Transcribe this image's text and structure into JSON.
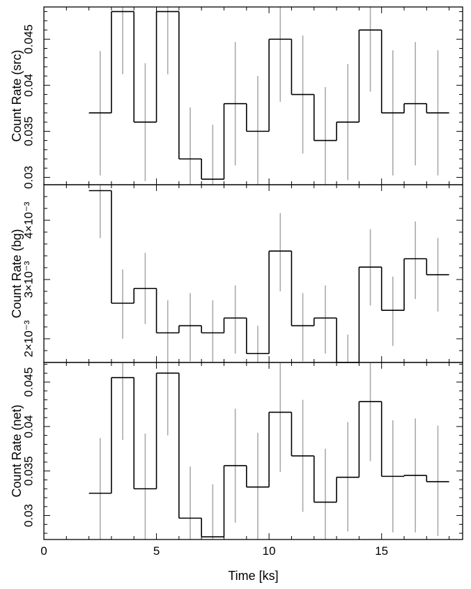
{
  "chart_data": [
    {
      "type": "line",
      "style": "histogram-step with vertical error bars",
      "xlabel": "",
      "ylabel": "Count Rate (src)",
      "xlim": [
        0,
        18.6
      ],
      "ylim": [
        0.0292,
        0.0485
      ],
      "yticks": [
        {
          "value": 0.03,
          "label": "0.03"
        },
        {
          "value": 0.035,
          "label": "0.035"
        },
        {
          "value": 0.04,
          "label": "0.04"
        },
        {
          "value": 0.045,
          "label": "0.045"
        }
      ],
      "minor_y_step": 0.001,
      "series": [
        {
          "x_edges": [
            2.0,
            3.0,
            4.0,
            5.0,
            6.0,
            7.0,
            8.0,
            9.0,
            10.0,
            11.0,
            12.0,
            13.0,
            14.0,
            15.0,
            16.0,
            17.0,
            18.0
          ],
          "x_centers": [
            2.5,
            3.5,
            4.5,
            5.5,
            6.5,
            7.5,
            8.5,
            9.5,
            10.5,
            11.5,
            12.5,
            13.5,
            14.5,
            15.5,
            16.5,
            17.5
          ],
          "values": [
            0.037,
            0.048,
            0.036,
            0.048,
            0.032,
            0.0298,
            0.038,
            0.035,
            0.045,
            0.039,
            0.034,
            0.036,
            0.046,
            0.037,
            0.038,
            0.037
          ],
          "err_low": [
            0.0302,
            0.0412,
            0.0296,
            0.0412,
            0.0254,
            0.0238,
            0.0313,
            0.029,
            0.0382,
            0.0326,
            0.0282,
            0.0297,
            0.0393,
            0.0302,
            0.0313,
            0.0302
          ],
          "err_high": [
            0.0437,
            0.0548,
            0.0424,
            0.0548,
            0.0376,
            0.0357,
            0.0447,
            0.041,
            0.0518,
            0.0454,
            0.0398,
            0.0423,
            0.0527,
            0.0438,
            0.0447,
            0.0438
          ]
        }
      ]
    },
    {
      "type": "line",
      "style": "histogram-step with vertical error bars",
      "xlabel": "",
      "ylabel": "Count Rate (bg)",
      "xlim": [
        0,
        18.6
      ],
      "ylim": [
        0.0016,
        0.0046
      ],
      "yticks": [
        {
          "value": 0.002,
          "label": "2×10⁻³"
        },
        {
          "value": 0.003,
          "label": "3×10⁻³"
        },
        {
          "value": 0.004,
          "label": "4×10⁻³"
        }
      ],
      "minor_y_step": 0.0002,
      "series": [
        {
          "x_edges": [
            2.0,
            3.0,
            4.0,
            5.0,
            6.0,
            7.0,
            8.0,
            9.0,
            10.0,
            11.0,
            12.0,
            13.0,
            14.0,
            15.0,
            16.0,
            17.0,
            18.0
          ],
          "x_centers": [
            2.5,
            3.5,
            4.5,
            5.5,
            6.5,
            7.5,
            8.5,
            9.5,
            10.5,
            11.5,
            12.5,
            13.5,
            14.5,
            15.5,
            16.5,
            17.5
          ],
          "values": [
            0.0045,
            0.0026,
            0.00285,
            0.0021,
            0.00222,
            0.0021,
            0.00235,
            0.00175,
            0.00348,
            0.00222,
            0.00235,
            0.0016,
            0.00321,
            0.00248,
            0.00335,
            0.00308
          ],
          "err_low": [
            0.0037,
            0.002,
            0.00225,
            0.0015,
            0.00162,
            0.0015,
            0.00175,
            0.00115,
            0.0028,
            0.00162,
            0.00175,
            0.0012,
            0.00256,
            0.00188,
            0.00267,
            0.00246
          ],
          "err_high": [
            0.0052,
            0.00317,
            0.00345,
            0.00265,
            0.00277,
            0.00265,
            0.0029,
            0.00222,
            0.00412,
            0.00277,
            0.0029,
            0.00207,
            0.00385,
            0.00305,
            0.00398,
            0.0037
          ]
        }
      ]
    },
    {
      "type": "line",
      "style": "histogram-step with vertical error bars",
      "xlabel": "Time [ks]",
      "ylabel": "Count Rate (net)",
      "xlim": [
        0,
        18.6
      ],
      "ylim": [
        0.0273,
        0.0472
      ],
      "xticks": [
        {
          "value": 0,
          "label": "0"
        },
        {
          "value": 5,
          "label": "5"
        },
        {
          "value": 10,
          "label": "10"
        },
        {
          "value": 15,
          "label": "15"
        }
      ],
      "minor_x_step": 1,
      "yticks": [
        {
          "value": 0.03,
          "label": "0.03"
        },
        {
          "value": 0.035,
          "label": "0.035"
        },
        {
          "value": 0.04,
          "label": "0.04"
        },
        {
          "value": 0.045,
          "label": "0.045"
        }
      ],
      "minor_y_step": 0.001,
      "series": [
        {
          "x_edges": [
            2.0,
            3.0,
            4.0,
            5.0,
            6.0,
            7.0,
            8.0,
            9.0,
            10.0,
            11.0,
            12.0,
            13.0,
            14.0,
            15.0,
            16.0,
            17.0,
            18.0
          ],
          "x_centers": [
            2.5,
            3.5,
            4.5,
            5.5,
            6.5,
            7.5,
            8.5,
            9.5,
            10.5,
            11.5,
            12.5,
            13.5,
            14.5,
            15.5,
            16.5,
            17.5
          ],
          "values": [
            0.0325,
            0.0455,
            0.033,
            0.046,
            0.0297,
            0.0276,
            0.0356,
            0.0332,
            0.0416,
            0.0367,
            0.0315,
            0.0343,
            0.0428,
            0.0344,
            0.0345,
            0.0338
          ],
          "err_low": [
            0.0262,
            0.0385,
            0.0268,
            0.039,
            0.0241,
            0.0218,
            0.0292,
            0.0271,
            0.0349,
            0.0304,
            0.0256,
            0.0282,
            0.0361,
            0.0281,
            0.0281,
            0.0277
          ],
          "err_high": [
            0.0387,
            0.0525,
            0.0392,
            0.053,
            0.0355,
            0.0335,
            0.042,
            0.0393,
            0.0483,
            0.043,
            0.0375,
            0.0405,
            0.0495,
            0.0407,
            0.0409,
            0.0401
          ]
        }
      ]
    }
  ]
}
